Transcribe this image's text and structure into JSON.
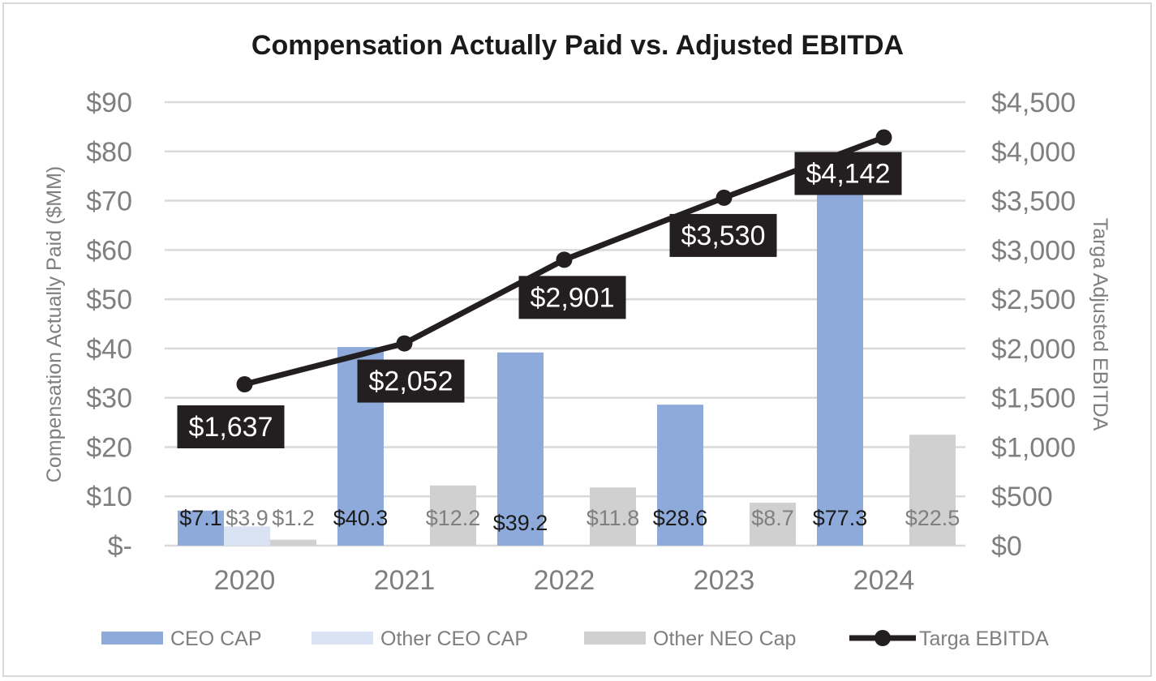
{
  "chart_data": {
    "type": "bar",
    "title": "Compensation Actually Paid vs. Adjusted EBITDA",
    "categories": [
      "2020",
      "2021",
      "2022",
      "2023",
      "2024"
    ],
    "ylabel": "Compensation Actually Paid ($MM)",
    "y2label": "Targa Adjusted EBITDA",
    "ylim": [
      0,
      90
    ],
    "y2lim": [
      0,
      4500
    ],
    "y_ticks": [
      0,
      10,
      20,
      30,
      40,
      50,
      60,
      70,
      80,
      90
    ],
    "y_tick_labels": [
      "$-",
      "$10",
      "$20",
      "$30",
      "$40",
      "$50",
      "$60",
      "$70",
      "$80",
      "$90"
    ],
    "y2_ticks": [
      0,
      500,
      1000,
      1500,
      2000,
      2500,
      3000,
      3500,
      4000,
      4500
    ],
    "y2_tick_labels": [
      "$0",
      "$500",
      "$1,000",
      "$1,500",
      "$2,000",
      "$2,500",
      "$3,000",
      "$3,500",
      "$4,000",
      "$4,500"
    ],
    "grid": true,
    "legend_position": "bottom",
    "series": [
      {
        "name": "CEO CAP",
        "kind": "bar",
        "axis": "left",
        "color": "#8eaadb",
        "values": [
          7.1,
          40.3,
          39.2,
          28.6,
          77.3
        ],
        "labels": [
          "$7.1",
          "$40.3",
          "$39.2",
          "$28.6",
          "$77.3"
        ],
        "label_color": "#1a1a1a"
      },
      {
        "name": "Other CEO CAP",
        "kind": "bar",
        "axis": "left",
        "color": "#dae3f3",
        "values": [
          3.9,
          null,
          null,
          null,
          null
        ],
        "labels": [
          "$3.9",
          null,
          null,
          null,
          null
        ],
        "label_color": "#7f7f7f"
      },
      {
        "name": "Other NEO Cap",
        "kind": "bar",
        "axis": "left",
        "color": "#d0d0d0",
        "values": [
          1.2,
          12.2,
          11.8,
          8.7,
          22.5
        ],
        "labels": [
          "$1.2",
          "$12.2",
          "$11.8",
          "$8.7",
          "$22.5"
        ],
        "label_color": "#7f7f7f"
      },
      {
        "name": "Targa EBITDA",
        "kind": "line",
        "axis": "right",
        "color": "#231f20",
        "values": [
          1637,
          2052,
          2901,
          3530,
          4142
        ],
        "labels": [
          "$1,637",
          "$2,052",
          "$2,901",
          "$3,530",
          "$4,142"
        ]
      }
    ]
  }
}
